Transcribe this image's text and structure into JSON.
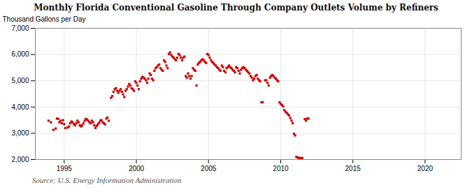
{
  "chart_data": {
    "type": "scatter",
    "title": "Monthly Florida Conventional Gasoline Through Company Outlets Volume by Refiners",
    "ylabel": "Thousand Gallons per Day",
    "annotation": "Source: U.S. Energy Information Administration",
    "color": "#cc0000",
    "marker": "square",
    "grid": true,
    "xlim": [
      1993.0,
      2022.5
    ],
    "ylim": [
      2000,
      7000
    ],
    "xticks": [
      1995,
      2000,
      2005,
      2010,
      2015,
      2020
    ],
    "yticks": [
      {
        "value": 2000,
        "label": "2,000"
      },
      {
        "value": 3000,
        "label": "3,000"
      },
      {
        "value": 4000,
        "label": "4,000"
      },
      {
        "value": 5000,
        "label": "5,000"
      },
      {
        "value": 6000,
        "label": "6,000"
      },
      {
        "value": 7000,
        "label": "7,000"
      }
    ],
    "x": [
      1993.917,
      1994.083,
      1994.25,
      1994.417,
      1994.5,
      1994.583,
      1994.667,
      1994.75,
      1994.833,
      1994.917,
      1995.0,
      1995.083,
      1995.25,
      1995.333,
      1995.417,
      1995.5,
      1995.583,
      1995.667,
      1995.75,
      1995.833,
      1995.917,
      1996.0,
      1996.083,
      1996.167,
      1996.25,
      1996.333,
      1996.417,
      1996.5,
      1996.583,
      1996.667,
      1996.75,
      1996.833,
      1996.917,
      1997.0,
      1997.083,
      1997.167,
      1997.25,
      1997.333,
      1997.417,
      1997.5,
      1997.583,
      1997.667,
      1997.75,
      1997.833,
      1997.917,
      1998.0,
      1998.083,
      1998.25,
      1998.333,
      1998.417,
      1998.5,
      1998.583,
      1998.667,
      1998.75,
      1998.833,
      1998.917,
      1999.0,
      1999.083,
      1999.167,
      1999.25,
      1999.333,
      1999.417,
      1999.5,
      1999.583,
      1999.667,
      1999.75,
      1999.833,
      1999.917,
      2000.0,
      2000.083,
      2000.167,
      2000.25,
      2000.333,
      2000.417,
      2000.5,
      2000.583,
      2000.667,
      2000.75,
      2000.833,
      2000.917,
      2001.0,
      2001.083,
      2001.167,
      2001.25,
      2001.333,
      2001.417,
      2001.5,
      2001.583,
      2001.667,
      2001.75,
      2001.833,
      2001.917,
      2002.0,
      2002.083,
      2002.167,
      2002.25,
      2002.333,
      2002.417,
      2002.5,
      2002.583,
      2002.667,
      2002.75,
      2002.833,
      2002.917,
      2003.0,
      2003.083,
      2003.167,
      2003.25,
      2003.333,
      2003.417,
      2003.5,
      2003.583,
      2003.667,
      2003.75,
      2003.833,
      2003.917,
      2004.0,
      2004.083,
      2004.167,
      2004.25,
      2004.333,
      2004.417,
      2004.5,
      2004.583,
      2004.667,
      2004.75,
      2004.833,
      2004.917,
      2005.0,
      2005.083,
      2005.167,
      2005.25,
      2005.333,
      2005.417,
      2005.5,
      2005.583,
      2005.667,
      2005.75,
      2005.833,
      2005.917,
      2006.0,
      2006.083,
      2006.167,
      2006.25,
      2006.333,
      2006.417,
      2006.5,
      2006.583,
      2006.667,
      2006.75,
      2006.833,
      2006.917,
      2007.0,
      2007.083,
      2007.167,
      2007.25,
      2007.333,
      2007.417,
      2007.5,
      2007.583,
      2007.667,
      2007.75,
      2007.833,
      2007.917,
      2008.0,
      2008.083,
      2008.167,
      2008.25,
      2008.333,
      2008.417,
      2008.5,
      2008.583,
      2008.667,
      2008.75,
      2008.917,
      2009.0,
      2009.083,
      2009.167,
      2009.25,
      2009.333,
      2009.417,
      2009.5,
      2009.583,
      2009.667,
      2009.75,
      2009.833,
      2009.917,
      2010.0,
      2010.083,
      2010.167,
      2010.25,
      2010.333,
      2010.417,
      2010.5,
      2010.583,
      2010.667,
      2010.75,
      2010.833,
      2010.917,
      2011.0,
      2011.083,
      2011.167,
      2011.25,
      2011.333,
      2011.417,
      2011.5,
      2011.667,
      2011.75,
      2011.833,
      2011.917
    ],
    "values": [
      3480,
      3420,
      3130,
      3180,
      3560,
      3550,
      3420,
      3480,
      3380,
      3500,
      3350,
      3200,
      3220,
      3260,
      3380,
      3450,
      3420,
      3350,
      3300,
      3380,
      3480,
      3420,
      3300,
      3260,
      3300,
      3380,
      3480,
      3550,
      3520,
      3480,
      3420,
      3380,
      3480,
      3420,
      3300,
      3200,
      3280,
      3340,
      3400,
      3480,
      3500,
      3420,
      3380,
      3340,
      3560,
      3600,
      3480,
      4350,
      4420,
      4580,
      4680,
      4720,
      4620,
      4540,
      4620,
      4680,
      4580,
      4480,
      4380,
      4620,
      4680,
      4780,
      4880,
      4820,
      4720,
      4680,
      4620,
      4980,
      4920,
      4820,
      4680,
      4980,
      5080,
      5150,
      5120,
      5080,
      5020,
      4920,
      5080,
      5280,
      5220,
      5080,
      5020,
      5380,
      5480,
      5520,
      5580,
      5620,
      5480,
      5420,
      5380,
      5780,
      5720,
      5580,
      5480,
      6020,
      6080,
      5980,
      5920,
      5880,
      5820,
      5780,
      5880,
      6020,
      5980,
      5880,
      5780,
      5880,
      5920,
      5180,
      5120,
      5280,
      5180,
      5080,
      5180,
      5480,
      5420,
      5380,
      4820,
      5620,
      5680,
      5720,
      5780,
      5820,
      5780,
      5720,
      5680,
      6020,
      5980,
      5880,
      5780,
      5720,
      5680,
      5620,
      5580,
      5520,
      5480,
      5420,
      5380,
      5580,
      5520,
      5380,
      5320,
      5480,
      5520,
      5580,
      5520,
      5480,
      5420,
      5380,
      5320,
      5520,
      5480,
      5380,
      5280,
      5420,
      5480,
      5520,
      5480,
      5420,
      5380,
      5320,
      5280,
      5180,
      5120,
      5020,
      5080,
      5180,
      5220,
      5080,
      5020,
      4980,
      4180,
      4180,
      5020,
      5020,
      4920,
      4820,
      5120,
      5180,
      5220,
      5180,
      5120,
      5080,
      5020,
      4980,
      4180,
      4120,
      4080,
      4020,
      3880,
      3820,
      3780,
      3720,
      3680,
      3580,
      3480,
      3380,
      2980,
      2920,
      2100,
      2080,
      2060,
      2060,
      2040,
      2060,
      3540,
      3480,
      3560,
      3560
    ]
  }
}
